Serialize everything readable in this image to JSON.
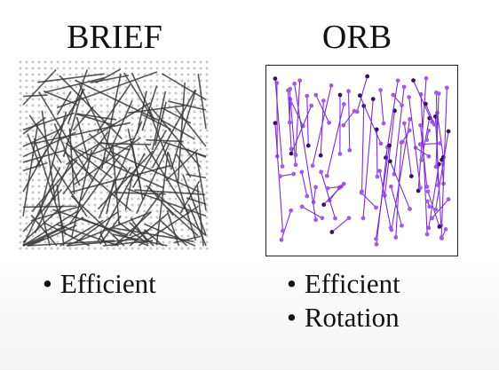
{
  "brief": {
    "title": "BRIEF",
    "bullets": [
      "Efficient"
    ]
  },
  "orb": {
    "title": "ORB",
    "bullets": [
      "Efficient",
      "Rotation"
    ]
  },
  "colors": {
    "brief_lines": "#3a3a3a",
    "brief_dots": "#c8c8c8",
    "orb_lines": "#7a2fd0",
    "orb_points_light": "#a05ae6",
    "orb_points_dark": "#3a0f66"
  }
}
